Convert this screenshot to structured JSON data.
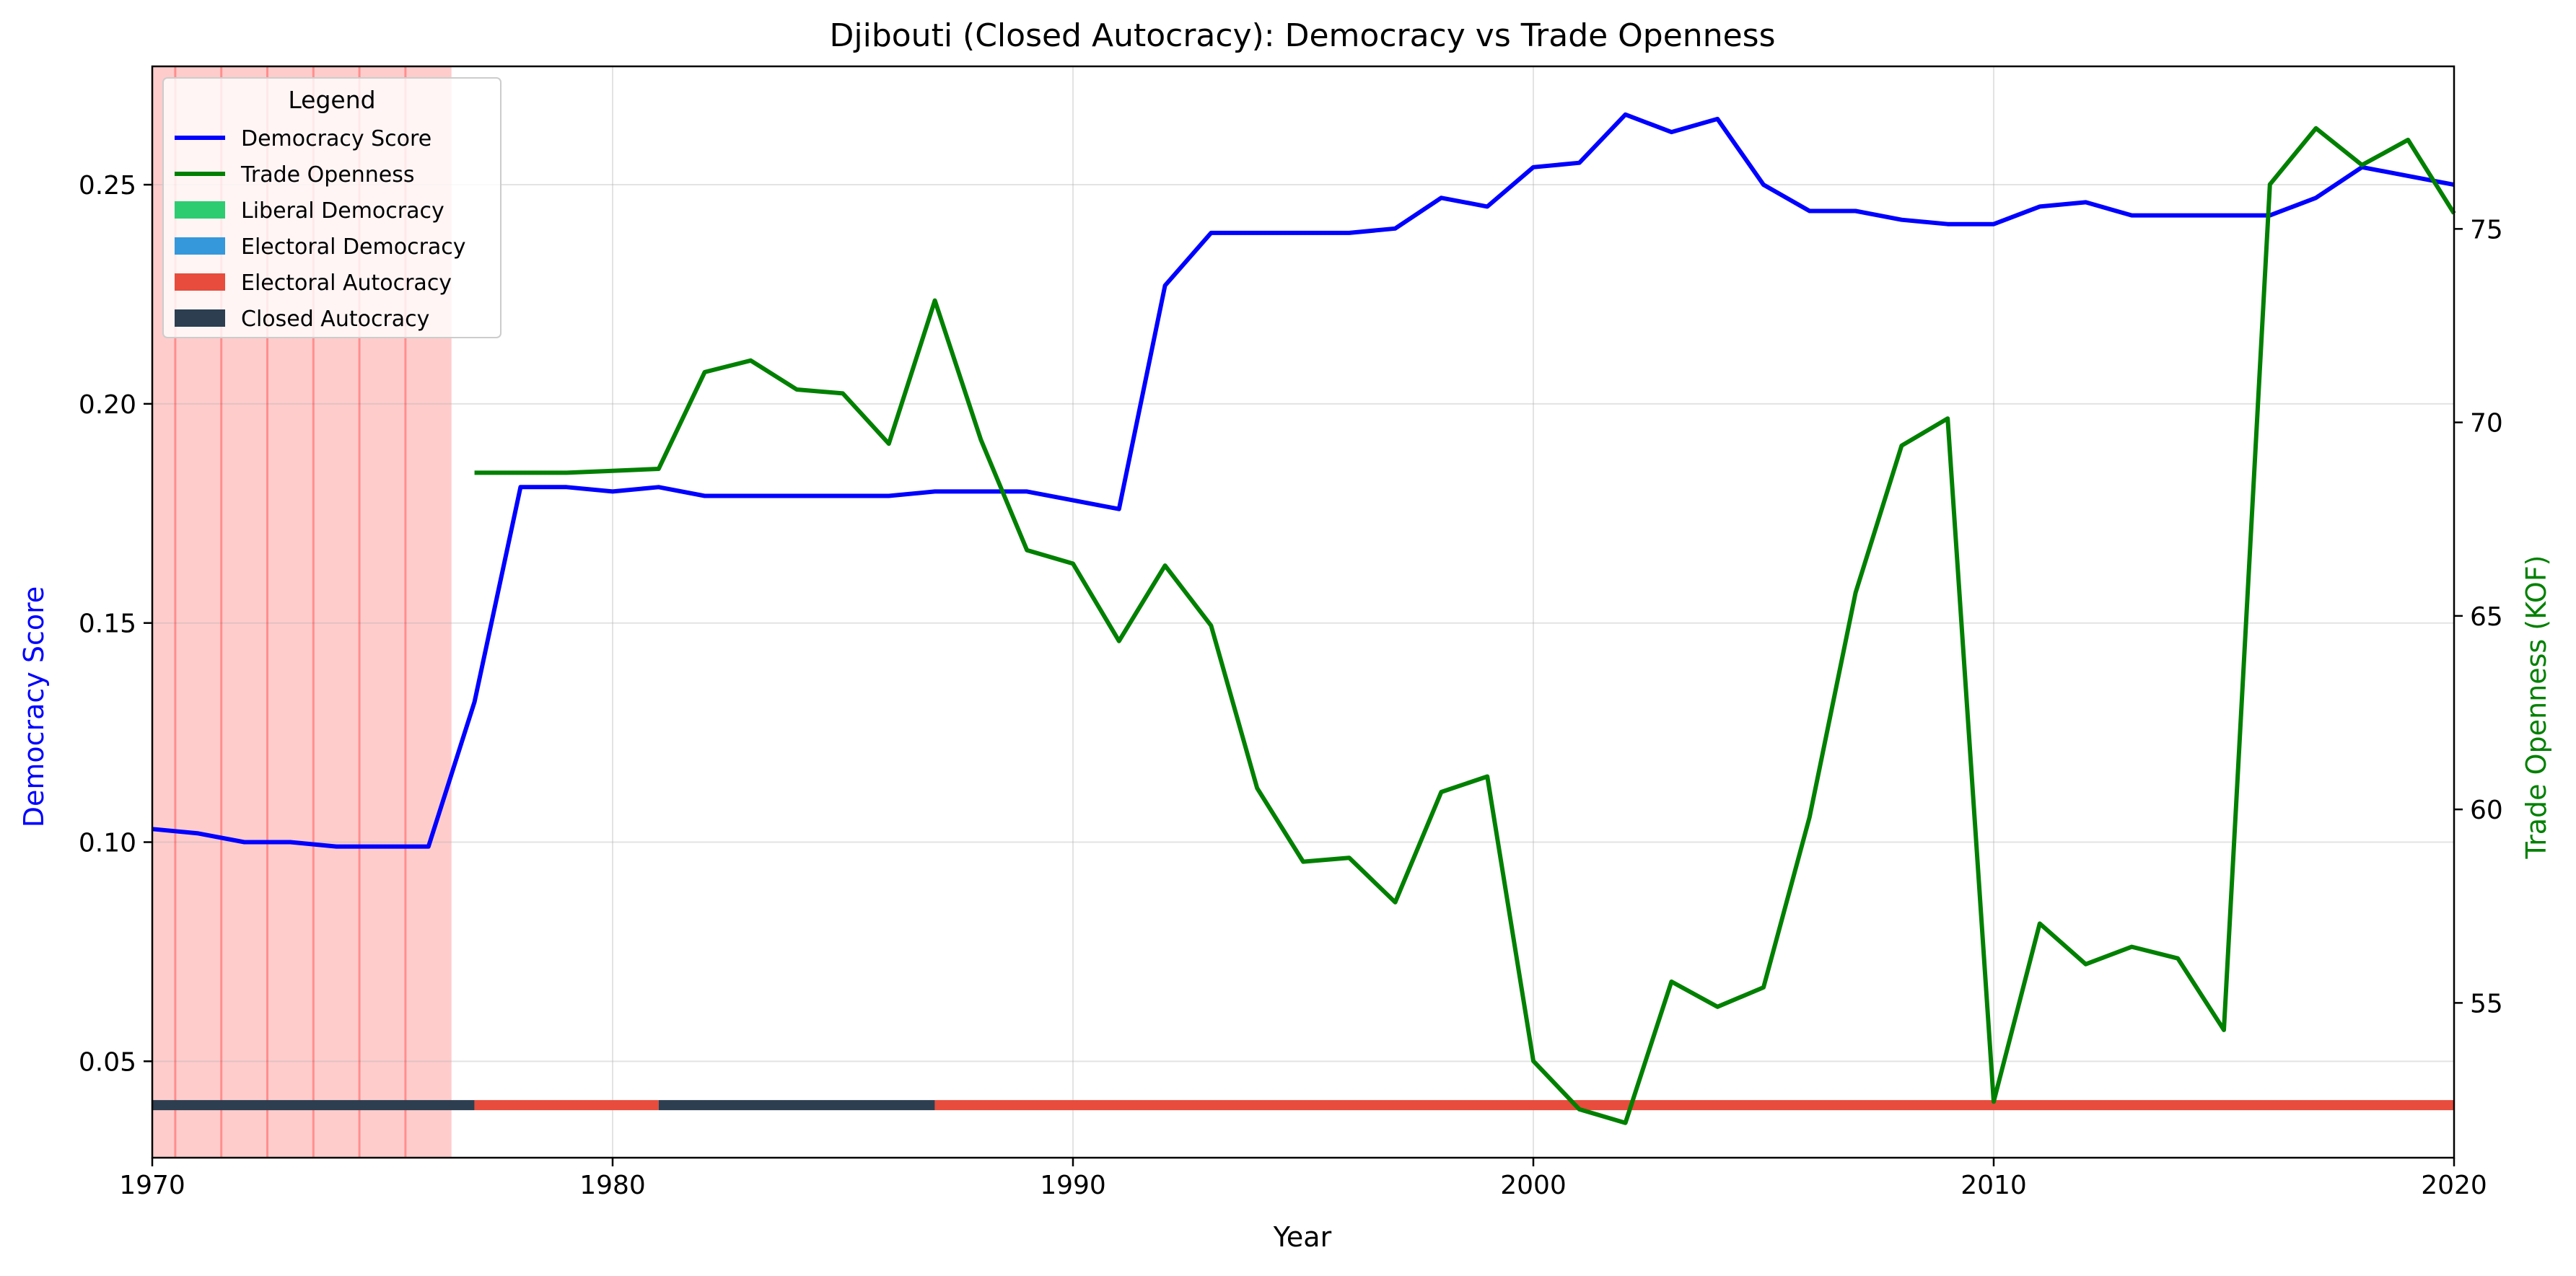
{
  "chart_data": {
    "type": "line",
    "title": "Djibouti (Closed Autocracy): Democracy vs Trade Openness",
    "xlabel": "Year",
    "ylabel_left": "Democracy Score",
    "ylabel_right": "Trade Openness (KOF)",
    "xlim": [
      1970,
      2020
    ],
    "ylim_left": [
      0.028,
      0.277
    ],
    "ylim_right": [
      51.0,
      79.2
    ],
    "x_ticks": [
      1970,
      1980,
      1990,
      2000,
      2010,
      2020
    ],
    "y_left_ticks": [
      "0.05",
      "0.10",
      "0.15",
      "0.20",
      "0.25"
    ],
    "y_right_ticks": [
      "55",
      "60",
      "65",
      "70",
      "75"
    ],
    "grid": true,
    "legend": {
      "title": "Legend",
      "placement": "top-left",
      "entries": [
        {
          "label": "Democracy Score",
          "kind": "line",
          "color": "#0000ff"
        },
        {
          "label": "Trade Openness",
          "kind": "line",
          "color": "#008000"
        },
        {
          "label": "Liberal Democracy",
          "kind": "patch",
          "color": "#2ecc71"
        },
        {
          "label": "Electoral Democracy",
          "kind": "patch",
          "color": "#3498db"
        },
        {
          "label": "Electoral Autocracy",
          "kind": "patch",
          "color": "#e74c3c"
        },
        {
          "label": "Closed Autocracy",
          "kind": "patch",
          "color": "#2c3e50"
        }
      ]
    },
    "shaded_period": {
      "start": 1970,
      "end": 1976.5,
      "color": "#ff0000",
      "alpha": 0.2
    },
    "vertical_markers": [
      1970.5,
      1971.5,
      1972.5,
      1973.5,
      1974.5,
      1975.5
    ],
    "series": [
      {
        "name": "Democracy Score",
        "axis": "left",
        "color": "#0000ff",
        "x": [
          1970,
          1971,
          1972,
          1973,
          1974,
          1975,
          1976,
          1977,
          1978,
          1979,
          1980,
          1981,
          1982,
          1983,
          1984,
          1985,
          1986,
          1987,
          1988,
          1989,
          1990,
          1991,
          1992,
          1993,
          1994,
          1995,
          1996,
          1997,
          1998,
          1999,
          2000,
          2001,
          2002,
          2003,
          2004,
          2005,
          2006,
          2007,
          2008,
          2009,
          2010,
          2011,
          2012,
          2013,
          2014,
          2015,
          2016,
          2017,
          2018,
          2019,
          2020
        ],
        "values": [
          0.103,
          0.102,
          0.1,
          0.1,
          0.099,
          0.099,
          0.099,
          0.132,
          0.181,
          0.181,
          0.18,
          0.181,
          0.179,
          0.179,
          0.179,
          0.179,
          0.179,
          0.18,
          0.18,
          0.18,
          0.178,
          0.176,
          0.227,
          0.239,
          0.239,
          0.239,
          0.239,
          0.24,
          0.247,
          0.245,
          0.254,
          0.255,
          0.266,
          0.262,
          0.265,
          0.25,
          0.244,
          0.244,
          0.242,
          0.241,
          0.241,
          0.245,
          0.246,
          0.243,
          0.243,
          0.243,
          0.243,
          0.247,
          0.254,
          0.252,
          0.25
        ]
      },
      {
        "name": "Trade Openness",
        "axis": "right",
        "color": "#008000",
        "x": [
          1977,
          1978,
          1979,
          1980,
          1981,
          1982,
          1983,
          1984,
          1985,
          1986,
          1987,
          1988,
          1989,
          1990,
          1991,
          1992,
          1993,
          1994,
          1995,
          1996,
          1997,
          1998,
          1999,
          2000,
          2001,
          2002,
          2003,
          2004,
          2005,
          2006,
          2007,
          2008,
          2009,
          2010,
          2011,
          2012,
          2013,
          2014,
          2015,
          2016,
          2017,
          2018,
          2019,
          2020
        ],
        "values": [
          68.7,
          68.7,
          68.7,
          68.75,
          68.8,
          71.3,
          71.6,
          70.85,
          70.75,
          69.45,
          73.15,
          69.55,
          66.7,
          66.35,
          64.35,
          66.3,
          64.75,
          60.55,
          58.65,
          58.75,
          57.6,
          60.45,
          60.85,
          53.5,
          52.25,
          51.9,
          55.55,
          54.9,
          55.4,
          59.8,
          65.6,
          69.4,
          70.1,
          52.45,
          57.05,
          56.0,
          56.45,
          56.15,
          54.3,
          76.15,
          77.6,
          76.65,
          77.3,
          75.4
        ]
      }
    ],
    "regime_bar": {
      "level": 0.04,
      "segments": [
        {
          "start": 1970,
          "end": 1977,
          "regime": "Closed Autocracy",
          "color": "#2c3e50"
        },
        {
          "start": 1977,
          "end": 1981,
          "regime": "Electoral Autocracy",
          "color": "#e74c3c"
        },
        {
          "start": 1981,
          "end": 1987,
          "regime": "Closed Autocracy",
          "color": "#2c3e50"
        },
        {
          "start": 1987,
          "end": 2020,
          "regime": "Electoral Autocracy",
          "color": "#e74c3c"
        }
      ]
    }
  }
}
